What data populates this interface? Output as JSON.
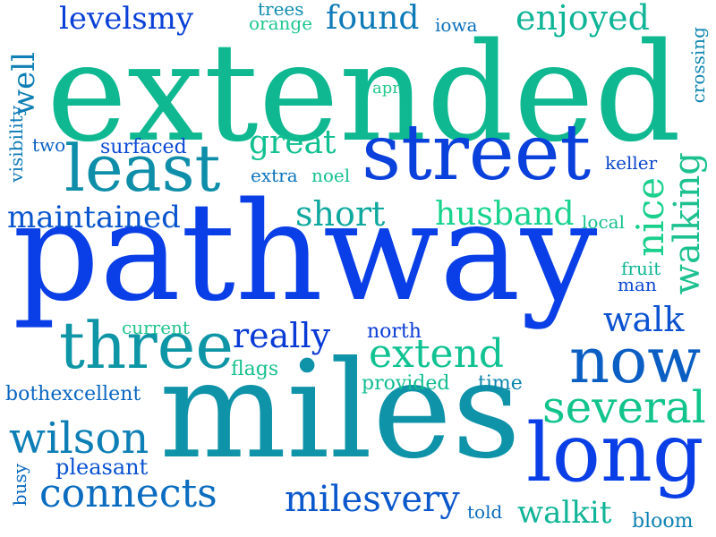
{
  "words": [
    {
      "text": "extended",
      "color": "#0fb890"
    },
    {
      "text": "pathway",
      "color": "#0a3ee6"
    },
    {
      "text": "miles",
      "color": "#0f93a8"
    },
    {
      "text": "street",
      "color": "#0a40dc"
    },
    {
      "text": "long",
      "color": "#0a3ee6"
    },
    {
      "text": "least",
      "color": "#0e8ea8"
    },
    {
      "text": "three",
      "color": "#0f96a6"
    },
    {
      "text": "now",
      "color": "#0a5ec4"
    },
    {
      "text": "several",
      "color": "#12c48c"
    },
    {
      "text": "connects",
      "color": "#0b6cc0"
    },
    {
      "text": "wilson",
      "color": "#0e7fb6"
    },
    {
      "text": "extend",
      "color": "#10c292"
    },
    {
      "text": "great",
      "color": "#10c090"
    },
    {
      "text": "found",
      "color": "#0e7ab8"
    },
    {
      "text": "enjoyed",
      "color": "#10b497"
    },
    {
      "text": "milesvery",
      "color": "#0b58cc"
    },
    {
      "text": "maintained",
      "color": "#0a55cf"
    },
    {
      "text": "husband",
      "color": "#18d38d"
    },
    {
      "text": "short",
      "color": "#0fa89e"
    },
    {
      "text": "walk",
      "color": "#0a52d0"
    },
    {
      "text": "really",
      "color": "#0a3ad6"
    },
    {
      "text": "levelsmy",
      "color": "#0a40d8"
    },
    {
      "text": "walking",
      "color": "#1dc18f"
    },
    {
      "text": "nice",
      "color": "#19cf8c"
    },
    {
      "text": "walkit",
      "color": "#10b497"
    },
    {
      "text": "well",
      "color": "#0e7fb4"
    },
    {
      "text": "bothexcellent",
      "color": "#0b66c2"
    },
    {
      "text": "pleasant",
      "color": "#0a52d2"
    },
    {
      "text": "surfaced",
      "color": "#0a48d6"
    },
    {
      "text": "provided",
      "color": "#12bd91"
    },
    {
      "text": "time",
      "color": "#0d86ae"
    },
    {
      "text": "north",
      "color": "#0a3cd8"
    },
    {
      "text": "current",
      "color": "#22c38c"
    },
    {
      "text": "flags",
      "color": "#16c08c"
    },
    {
      "text": "extra",
      "color": "#0b72bc"
    },
    {
      "text": "noel",
      "color": "#16c090"
    },
    {
      "text": "keller",
      "color": "#0b46cc"
    },
    {
      "text": "local",
      "color": "#16c08c"
    },
    {
      "text": "fruit",
      "color": "#12b694"
    },
    {
      "text": "man",
      "color": "#0a46d0"
    },
    {
      "text": "told",
      "color": "#0b6cc0"
    },
    {
      "text": "bloom",
      "color": "#0d80b4"
    },
    {
      "text": "trees",
      "color": "#0d8cae"
    },
    {
      "text": "orange",
      "color": "#1ec78c"
    },
    {
      "text": "iowa",
      "color": "#0c70bc"
    },
    {
      "text": "apr",
      "color": "#20c98c"
    },
    {
      "text": "two",
      "color": "#0b62c6"
    },
    {
      "text": "busy",
      "color": "#0b68c0"
    },
    {
      "text": "visibility",
      "color": "#0e7ab8"
    },
    {
      "text": "crossing",
      "color": "#0e86b0"
    }
  ]
}
